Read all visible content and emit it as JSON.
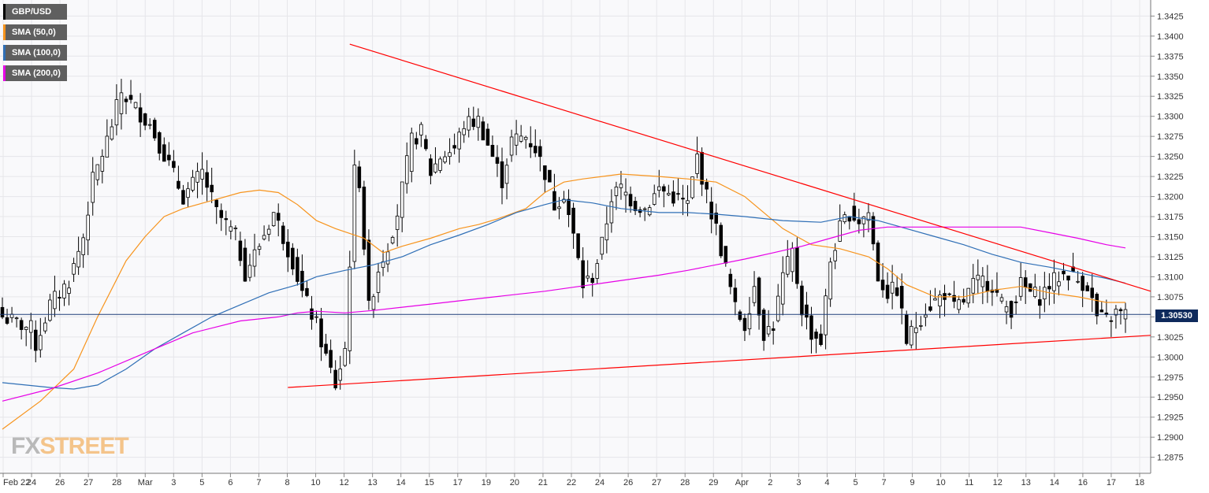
{
  "legend": [
    {
      "label": "GBP/USD",
      "color": "#000000"
    },
    {
      "label": "SMA (50,0)",
      "color": "#f7941d"
    },
    {
      "label": "SMA (100,0)",
      "color": "#2f6fb6"
    },
    {
      "label": "SMA (200,0)",
      "color": "#e600e6"
    }
  ],
  "last_price": "1.30530",
  "logo": {
    "part1": "FX",
    "part2": "STREET"
  },
  "colors": {
    "background": "#f9f9fb",
    "grid": "#e6e6ea",
    "trendline": "#ff0000",
    "price_line": "#1f3f7a"
  },
  "chart_data": {
    "type": "candlestick",
    "timeframe": "4 hour candles",
    "x_tick_labels": [
      "Feb 22",
      "24",
      "26",
      "27",
      "28",
      "Mar",
      "3",
      "5",
      "6",
      "7",
      "8",
      "10",
      "12",
      "13",
      "14",
      "15",
      "17",
      "19",
      "20",
      "21",
      "22",
      "24",
      "26",
      "27",
      "28",
      "29",
      "Apr",
      "2",
      "3",
      "4",
      "5",
      "7",
      "9",
      "10",
      "11",
      "12",
      "13",
      "14",
      "16",
      "17",
      "18"
    ],
    "ylim": [
      1.2855,
      1.3445
    ],
    "y_ticks": [
      "1.2875",
      "1.2900",
      "1.2925",
      "1.2950",
      "1.2975",
      "1.3000",
      "1.3025",
      "1.3050",
      "1.3075",
      "1.3100",
      "1.3125",
      "1.3150",
      "1.3175",
      "1.3200",
      "1.3225",
      "1.3250",
      "1.3275",
      "1.3300",
      "1.3325",
      "1.3350",
      "1.3375",
      "1.3400",
      "1.3425"
    ],
    "candle_count": 237,
    "key_prices": [
      {
        "at_bar": 0,
        "price": 1.305
      },
      {
        "at_bar": 6,
        "price": 1.3035
      },
      {
        "at_bar": 7,
        "price": 1.3015
      },
      {
        "at_bar": 10,
        "price": 1.3065
      },
      {
        "at_bar": 14,
        "price": 1.3095
      },
      {
        "at_bar": 17,
        "price": 1.315
      },
      {
        "at_bar": 19,
        "price": 1.322
      },
      {
        "at_bar": 22,
        "price": 1.327
      },
      {
        "at_bar": 25,
        "price": 1.333
      },
      {
        "at_bar": 28,
        "price": 1.331
      },
      {
        "at_bar": 31,
        "price": 1.329
      },
      {
        "at_bar": 35,
        "price": 1.324
      },
      {
        "at_bar": 38,
        "price": 1.32
      },
      {
        "at_bar": 42,
        "price": 1.323
      },
      {
        "at_bar": 45,
        "price": 1.318
      },
      {
        "at_bar": 49,
        "price": 1.315
      },
      {
        "at_bar": 51,
        "price": 1.3105
      },
      {
        "at_bar": 54,
        "price": 1.314
      },
      {
        "at_bar": 57,
        "price": 1.318
      },
      {
        "at_bar": 61,
        "price": 1.312
      },
      {
        "at_bar": 63,
        "price": 1.308
      },
      {
        "at_bar": 66,
        "price": 1.304
      },
      {
        "at_bar": 68,
        "price": 1.3
      },
      {
        "at_bar": 70,
        "price": 1.2965
      },
      {
        "at_bar": 72,
        "price": 1.301
      },
      {
        "at_bar": 74,
        "price": 1.323
      },
      {
        "at_bar": 75,
        "price": 1.322
      },
      {
        "at_bar": 77,
        "price": 1.306
      },
      {
        "at_bar": 79,
        "price": 1.311
      },
      {
        "at_bar": 81,
        "price": 1.314
      },
      {
        "at_bar": 83,
        "price": 1.318
      },
      {
        "at_bar": 86,
        "price": 1.327
      },
      {
        "at_bar": 88,
        "price": 1.328
      },
      {
        "at_bar": 90,
        "price": 1.323
      },
      {
        "at_bar": 92,
        "price": 1.325
      },
      {
        "at_bar": 95,
        "price": 1.326
      },
      {
        "at_bar": 97,
        "price": 1.329
      },
      {
        "at_bar": 100,
        "price": 1.3295
      },
      {
        "at_bar": 103,
        "price": 1.325
      },
      {
        "at_bar": 105,
        "price": 1.322
      },
      {
        "at_bar": 107,
        "price": 1.327
      },
      {
        "at_bar": 110,
        "price": 1.3275
      },
      {
        "at_bar": 112,
        "price": 1.326
      },
      {
        "at_bar": 114,
        "price": 1.323
      },
      {
        "at_bar": 116,
        "price": 1.319
      },
      {
        "at_bar": 118,
        "price": 1.3205
      },
      {
        "at_bar": 120,
        "price": 1.315
      },
      {
        "at_bar": 122,
        "price": 1.309
      },
      {
        "at_bar": 124,
        "price": 1.31
      },
      {
        "at_bar": 126,
        "price": 1.314
      },
      {
        "at_bar": 128,
        "price": 1.32
      },
      {
        "at_bar": 130,
        "price": 1.321
      },
      {
        "at_bar": 133,
        "price": 1.319
      },
      {
        "at_bar": 135,
        "price": 1.3185
      },
      {
        "at_bar": 138,
        "price": 1.321
      },
      {
        "at_bar": 141,
        "price": 1.32
      },
      {
        "at_bar": 144,
        "price": 1.319
      },
      {
        "at_bar": 146,
        "price": 1.325
      },
      {
        "at_bar": 148,
        "price": 1.32
      },
      {
        "at_bar": 150,
        "price": 1.316
      },
      {
        "at_bar": 152,
        "price": 1.311
      },
      {
        "at_bar": 154,
        "price": 1.306
      },
      {
        "at_bar": 156,
        "price": 1.304
      },
      {
        "at_bar": 158,
        "price": 1.309
      },
      {
        "at_bar": 160,
        "price": 1.303
      },
      {
        "at_bar": 162,
        "price": 1.304
      },
      {
        "at_bar": 164,
        "price": 1.31
      },
      {
        "at_bar": 166,
        "price": 1.313
      },
      {
        "at_bar": 168,
        "price": 1.306
      },
      {
        "at_bar": 170,
        "price": 1.303
      },
      {
        "at_bar": 172,
        "price": 1.302
      },
      {
        "at_bar": 174,
        "price": 1.312
      },
      {
        "at_bar": 176,
        "price": 1.316
      },
      {
        "at_bar": 178,
        "price": 1.318
      },
      {
        "at_bar": 180,
        "price": 1.317
      },
      {
        "at_bar": 182,
        "price": 1.318
      },
      {
        "at_bar": 184,
        "price": 1.31
      },
      {
        "at_bar": 186,
        "price": 1.308
      },
      {
        "at_bar": 188,
        "price": 1.3085
      },
      {
        "at_bar": 190,
        "price": 1.302
      },
      {
        "at_bar": 192,
        "price": 1.304
      },
      {
        "at_bar": 194,
        "price": 1.306
      },
      {
        "at_bar": 196,
        "price": 1.307
      },
      {
        "at_bar": 198,
        "price": 1.308
      },
      {
        "at_bar": 200,
        "price": 1.306
      },
      {
        "at_bar": 202,
        "price": 1.307
      },
      {
        "at_bar": 204,
        "price": 1.309
      },
      {
        "at_bar": 206,
        "price": 1.3095
      },
      {
        "at_bar": 208,
        "price": 1.309
      },
      {
        "at_bar": 210,
        "price": 1.3065
      },
      {
        "at_bar": 212,
        "price": 1.306
      },
      {
        "at_bar": 214,
        "price": 1.309
      },
      {
        "at_bar": 216,
        "price": 1.308
      },
      {
        "at_bar": 218,
        "price": 1.3075
      },
      {
        "at_bar": 220,
        "price": 1.309
      },
      {
        "at_bar": 222,
        "price": 1.31
      },
      {
        "at_bar": 224,
        "price": 1.3105
      },
      {
        "at_bar": 226,
        "price": 1.3095
      },
      {
        "at_bar": 228,
        "price": 1.309
      },
      {
        "at_bar": 230,
        "price": 1.305
      },
      {
        "at_bar": 232,
        "price": 1.3045
      },
      {
        "at_bar": 234,
        "price": 1.3055
      },
      {
        "at_bar": 236,
        "price": 1.3053
      }
    ],
    "sma_lines": [
      {
        "name": "SMA (50,0)",
        "color": "#f7941d",
        "points": [
          [
            0,
            1.291
          ],
          [
            8,
            1.2945
          ],
          [
            15,
            1.2985
          ],
          [
            20,
            1.305
          ],
          [
            26,
            1.312
          ],
          [
            30,
            1.315
          ],
          [
            34,
            1.3175
          ],
          [
            38,
            1.3185
          ],
          [
            44,
            1.3195
          ],
          [
            50,
            1.3205
          ],
          [
            54,
            1.3208
          ],
          [
            58,
            1.3205
          ],
          [
            62,
            1.319
          ],
          [
            66,
            1.317
          ],
          [
            70,
            1.316
          ],
          [
            76,
            1.3148
          ],
          [
            80,
            1.313
          ],
          [
            84,
            1.3138
          ],
          [
            90,
            1.3148
          ],
          [
            96,
            1.316
          ],
          [
            100,
            1.3165
          ],
          [
            104,
            1.3172
          ],
          [
            110,
            1.3185
          ],
          [
            114,
            1.3205
          ],
          [
            118,
            1.3218
          ],
          [
            122,
            1.3222
          ],
          [
            130,
            1.3228
          ],
          [
            138,
            1.3225
          ],
          [
            144,
            1.3222
          ],
          [
            150,
            1.3218
          ],
          [
            156,
            1.32
          ],
          [
            160,
            1.318
          ],
          [
            164,
            1.316
          ],
          [
            170,
            1.314
          ],
          [
            176,
            1.3135
          ],
          [
            182,
            1.3125
          ],
          [
            186,
            1.311
          ],
          [
            190,
            1.309
          ],
          [
            196,
            1.3075
          ],
          [
            202,
            1.3075
          ],
          [
            208,
            1.3083
          ],
          [
            214,
            1.3088
          ],
          [
            220,
            1.308
          ],
          [
            226,
            1.3075
          ],
          [
            232,
            1.3068
          ],
          [
            236,
            1.3068
          ]
        ]
      },
      {
        "name": "SMA (100,0)",
        "color": "#2f6fb6",
        "points": [
          [
            0,
            1.2968
          ],
          [
            10,
            1.2962
          ],
          [
            15,
            1.296
          ],
          [
            20,
            1.2965
          ],
          [
            26,
            1.2985
          ],
          [
            32,
            1.301
          ],
          [
            38,
            1.303
          ],
          [
            44,
            1.305
          ],
          [
            50,
            1.3065
          ],
          [
            56,
            1.308
          ],
          [
            62,
            1.309
          ],
          [
            66,
            1.31
          ],
          [
            72,
            1.3108
          ],
          [
            78,
            1.3115
          ],
          [
            84,
            1.3125
          ],
          [
            90,
            1.314
          ],
          [
            96,
            1.3152
          ],
          [
            102,
            1.3165
          ],
          [
            108,
            1.318
          ],
          [
            114,
            1.319
          ],
          [
            118,
            1.3196
          ],
          [
            124,
            1.3192
          ],
          [
            130,
            1.3185
          ],
          [
            138,
            1.318
          ],
          [
            144,
            1.318
          ],
          [
            150,
            1.3178
          ],
          [
            156,
            1.3175
          ],
          [
            164,
            1.317
          ],
          [
            172,
            1.3168
          ],
          [
            178,
            1.3175
          ],
          [
            184,
            1.317
          ],
          [
            190,
            1.316
          ],
          [
            196,
            1.315
          ],
          [
            202,
            1.314
          ],
          [
            208,
            1.3128
          ],
          [
            214,
            1.3118
          ],
          [
            220,
            1.3112
          ],
          [
            226,
            1.3105
          ],
          [
            232,
            1.3098
          ],
          [
            236,
            1.3092
          ]
        ]
      },
      {
        "name": "SMA (200,0)",
        "color": "#e600e6",
        "points": [
          [
            0,
            1.2945
          ],
          [
            10,
            1.296
          ],
          [
            20,
            1.298
          ],
          [
            30,
            1.3005
          ],
          [
            40,
            1.303
          ],
          [
            50,
            1.3045
          ],
          [
            58,
            1.305
          ],
          [
            62,
            1.3055
          ],
          [
            66,
            1.3057
          ],
          [
            72,
            1.3055
          ],
          [
            78,
            1.3058
          ],
          [
            84,
            1.3062
          ],
          [
            90,
            1.3066
          ],
          [
            96,
            1.307
          ],
          [
            102,
            1.3074
          ],
          [
            108,
            1.3078
          ],
          [
            114,
            1.3082
          ],
          [
            120,
            1.3087
          ],
          [
            126,
            1.3092
          ],
          [
            132,
            1.3097
          ],
          [
            138,
            1.3102
          ],
          [
            144,
            1.3108
          ],
          [
            150,
            1.3115
          ],
          [
            156,
            1.3122
          ],
          [
            162,
            1.313
          ],
          [
            168,
            1.3138
          ],
          [
            174,
            1.3148
          ],
          [
            180,
            1.3158
          ],
          [
            186,
            1.3162
          ],
          [
            192,
            1.3162
          ],
          [
            200,
            1.3162
          ],
          [
            208,
            1.3162
          ],
          [
            214,
            1.3162
          ],
          [
            220,
            1.3155
          ],
          [
            226,
            1.3148
          ],
          [
            232,
            1.314
          ],
          [
            236,
            1.3136
          ]
        ]
      }
    ],
    "trendlines": [
      {
        "name": "resistance",
        "color": "#ff0000",
        "from": [
          73,
          1.339
        ],
        "to": [
          246,
          1.3082
        ]
      },
      {
        "name": "support",
        "color": "#ff0000",
        "from": [
          60,
          1.2962
        ],
        "to": [
          246,
          1.3027
        ]
      }
    ],
    "horizontal_line": {
      "price": 1.3053,
      "color": "#1f3f7a"
    }
  }
}
